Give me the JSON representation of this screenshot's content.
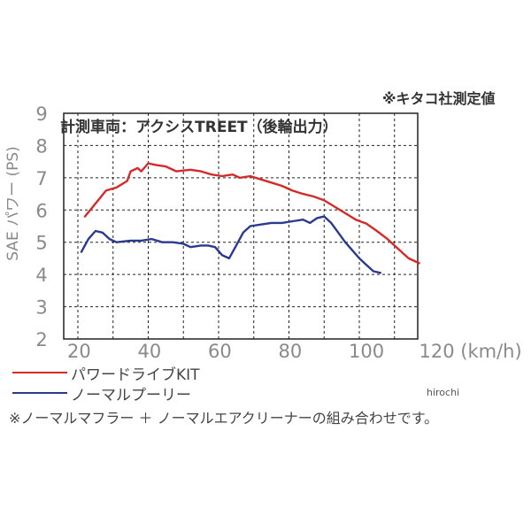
{
  "source_note": "※キタコ社測定値",
  "watermark": "hirochi",
  "footnote": "※ノーマルマフラー ＋ ノーマルエアクリーナーの組み合わせです。",
  "chart_data": {
    "type": "line",
    "title": "計測車両：アクシスTREET（後輪出力）",
    "xlabel": "(km/h)",
    "ylabel": "SAE パワー (PS)",
    "xlim": [
      20,
      120
    ],
    "ylim": [
      2,
      9
    ],
    "xticks": [
      20,
      40,
      60,
      80,
      100,
      120
    ],
    "yticks": [
      2,
      3,
      4,
      5,
      6,
      7,
      8,
      9
    ],
    "x_tick_labels": [
      "20",
      "40",
      "60",
      "80",
      "100",
      "120 (km/h)"
    ],
    "grid": true,
    "series": [
      {
        "name": "パワードライブKIT",
        "color": "#d42a2a",
        "points": [
          [
            22,
            5.8
          ],
          [
            25,
            6.2
          ],
          [
            28,
            6.6
          ],
          [
            31,
            6.7
          ],
          [
            34,
            6.9
          ],
          [
            35,
            7.2
          ],
          [
            37,
            7.3
          ],
          [
            38,
            7.2
          ],
          [
            40,
            7.45
          ],
          [
            42,
            7.4
          ],
          [
            45,
            7.35
          ],
          [
            48,
            7.2
          ],
          [
            52,
            7.25
          ],
          [
            55,
            7.2
          ],
          [
            58,
            7.1
          ],
          [
            61,
            7.05
          ],
          [
            64,
            7.1
          ],
          [
            66,
            7.0
          ],
          [
            69,
            7.05
          ],
          [
            72,
            6.95
          ],
          [
            75,
            6.85
          ],
          [
            78,
            6.75
          ],
          [
            81,
            6.6
          ],
          [
            84,
            6.5
          ],
          [
            87,
            6.42
          ],
          [
            90,
            6.3
          ],
          [
            93,
            6.1
          ],
          [
            96,
            5.9
          ],
          [
            99,
            5.7
          ],
          [
            102,
            5.58
          ],
          [
            105,
            5.35
          ],
          [
            108,
            5.1
          ],
          [
            111,
            4.8
          ],
          [
            114,
            4.5
          ],
          [
            117,
            4.35
          ]
        ]
      },
      {
        "name": "ノーマルプーリー",
        "color": "#2b3a8e",
        "points": [
          [
            21,
            4.7
          ],
          [
            23,
            5.1
          ],
          [
            25,
            5.35
          ],
          [
            27,
            5.3
          ],
          [
            29,
            5.1
          ],
          [
            31,
            5.0
          ],
          [
            35,
            5.05
          ],
          [
            38,
            5.05
          ],
          [
            41,
            5.1
          ],
          [
            44,
            5.0
          ],
          [
            47,
            5.0
          ],
          [
            50,
            4.95
          ],
          [
            52,
            4.85
          ],
          [
            55,
            4.9
          ],
          [
            57,
            4.9
          ],
          [
            59,
            4.85
          ],
          [
            61,
            4.6
          ],
          [
            63,
            4.5
          ],
          [
            65,
            4.9
          ],
          [
            67,
            5.3
          ],
          [
            69,
            5.5
          ],
          [
            72,
            5.55
          ],
          [
            75,
            5.6
          ],
          [
            78,
            5.6
          ],
          [
            81,
            5.65
          ],
          [
            84,
            5.7
          ],
          [
            86,
            5.6
          ],
          [
            88,
            5.75
          ],
          [
            90,
            5.8
          ],
          [
            92,
            5.6
          ],
          [
            94,
            5.3
          ],
          [
            96,
            5.0
          ],
          [
            98,
            4.75
          ],
          [
            100,
            4.5
          ],
          [
            102,
            4.3
          ],
          [
            104,
            4.1
          ],
          [
            106,
            4.05
          ]
        ]
      }
    ]
  }
}
